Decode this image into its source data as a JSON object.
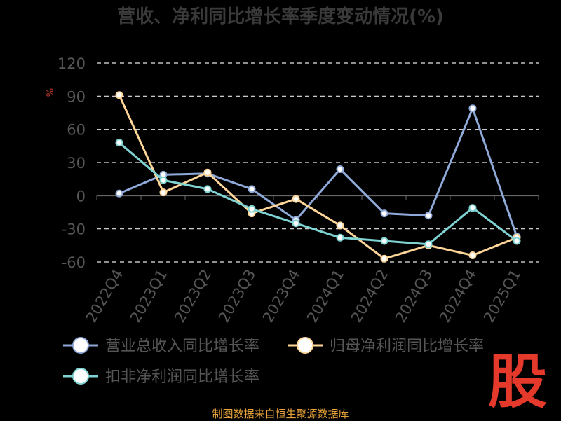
{
  "chart_data": {
    "type": "line",
    "title": "营收、净利同比增长率季度变动情况(%)",
    "unit_label": "%",
    "categories": [
      "2022Q4",
      "2023Q1",
      "2023Q2",
      "2023Q3",
      "2023Q4",
      "2024Q1",
      "2024Q2",
      "2024Q3",
      "2024Q4",
      "2025Q1"
    ],
    "y_ticks": [
      120,
      90,
      60,
      30,
      0,
      -30,
      -60
    ],
    "ylim": [
      -60,
      120
    ],
    "grid": true,
    "legend_placement": "bottom-left",
    "series": [
      {
        "name": "营业总收入同比增长率",
        "color": "#8FA9D8",
        "values": [
          2,
          19,
          20,
          6,
          -22,
          24,
          -16,
          -18,
          79,
          -37
        ]
      },
      {
        "name": "归母净利润同比增长率",
        "color": "#FFD699",
        "values": [
          91,
          3,
          21,
          -16,
          -3,
          -27,
          -57,
          -45,
          -54,
          -38
        ]
      },
      {
        "name": "扣非净利润同比增长率",
        "color": "#7FD3D3",
        "values": [
          48,
          14,
          6,
          -12,
          -25,
          -38,
          -41,
          -44,
          -11,
          -41
        ]
      }
    ]
  },
  "footer": "制图数据来自恒生聚源数据库",
  "logo_text": "股"
}
